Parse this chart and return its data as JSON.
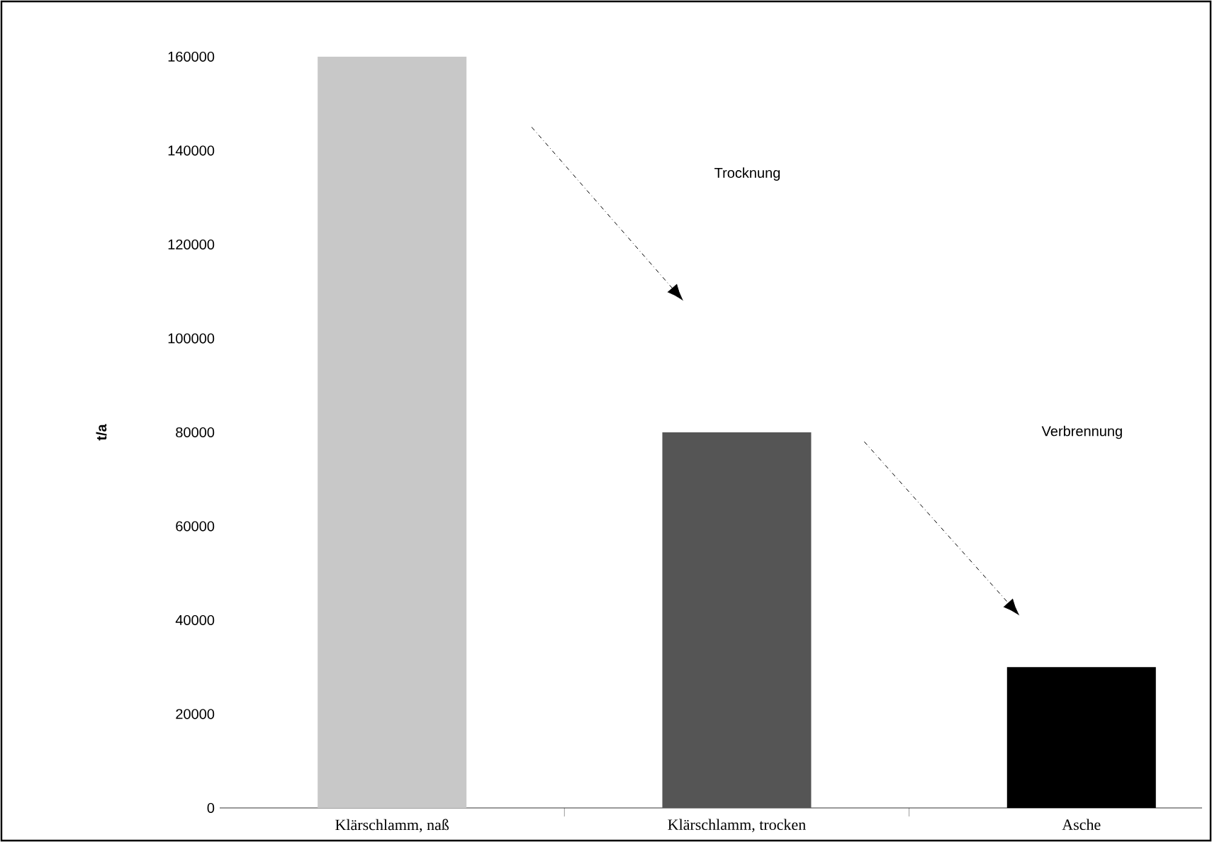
{
  "chart_data": {
    "type": "bar",
    "ylabel": "t/a",
    "categories": [
      "Klärschlamm, naß",
      "Klärschlamm, trocken",
      "Asche"
    ],
    "values": [
      160000,
      80000,
      30000
    ],
    "colors": [
      "#c8c8c8",
      "#555555",
      "#000000"
    ],
    "ylim": [
      0,
      160000
    ],
    "yticks": [
      0,
      20000,
      40000,
      60000,
      80000,
      100000,
      120000,
      140000,
      160000
    ],
    "annotations": [
      "Trocknung",
      "Verbrennung"
    ],
    "grid": false
  }
}
